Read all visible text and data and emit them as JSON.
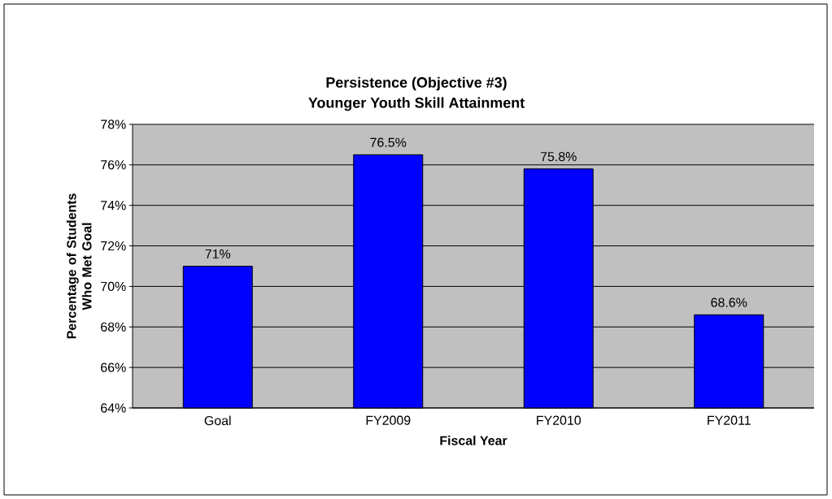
{
  "chart_data": {
    "type": "bar",
    "title": "Persistence (Objective #3)",
    "subtitle": "Younger Youth Skill Attainment",
    "xlabel": "Fiscal Year",
    "ylabel": "Percentage of Students Who Met Goal",
    "categories": [
      "Goal",
      "FY2009",
      "FY2010",
      "FY2011"
    ],
    "values": [
      71,
      76.5,
      75.8,
      68.6
    ],
    "value_labels": [
      "71%",
      "76.5%",
      "75.8%",
      "68.6%"
    ],
    "color": "#0000ff",
    "ylim": [
      64,
      78
    ],
    "yticks": [
      {
        "value": 64,
        "label": "64%"
      },
      {
        "value": 66,
        "label": "66%"
      },
      {
        "value": 68,
        "label": "68%"
      },
      {
        "value": 70,
        "label": "70%"
      },
      {
        "value": 72,
        "label": "72%"
      },
      {
        "value": 74,
        "label": "74%"
      },
      {
        "value": 76,
        "label": "76%"
      },
      {
        "value": 78,
        "label": "78%"
      }
    ],
    "grid": "y"
  }
}
